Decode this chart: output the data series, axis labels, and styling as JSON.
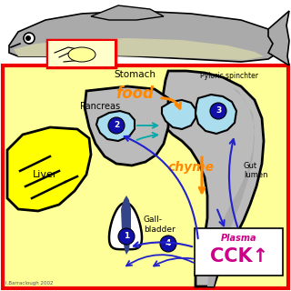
{
  "bg_yellow": "#FFFF99",
  "fish_gray": "#AAAAAA",
  "fish_dark": "#888888",
  "fish_belly": "#CCCCAA",
  "fish_fin_light": "#DDDDBB",
  "gut_gray": "#BBBBBB",
  "blue_organ": "#AADDEE",
  "blue_organ_dark": "#88CCDD",
  "liver_yellow": "#FFFF00",
  "gallbladder_white": "#FFFFFF",
  "red_border": "#EE0000",
  "black": "#000000",
  "food_orange": "#FF8800",
  "chyme_orange": "#FF8800",
  "plasma_magenta": "#CC0088",
  "cck_magenta": "#CC0088",
  "arrow_blue": "#2222CC",
  "arrow_cyan": "#00AAAA",
  "stomach_label": "Stomach",
  "food_label": "food",
  "chyme_label": "chyme",
  "pancreas_label": "Pancreas",
  "liver_label": "Liver",
  "gall_label": "Gall-\nbladder",
  "pyloric_label": "Pyloric spinchter",
  "gut_lumen_label": "Gut\nlumen",
  "plasma_label": "Plasma",
  "cck_label": "CCK↑",
  "credit_label": "I.Barraclough 2002"
}
